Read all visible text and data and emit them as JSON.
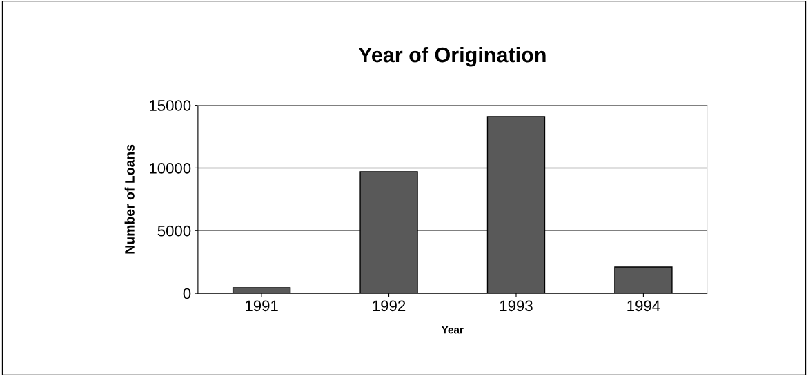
{
  "chart_data": {
    "type": "bar",
    "title": "Year of Origination",
    "xlabel": "Year",
    "ylabel": "Number of Loans",
    "categories": [
      "1991",
      "1992",
      "1993",
      "1994"
    ],
    "values": [
      450,
      9700,
      14100,
      2100
    ],
    "color": "#595959",
    "ylim": [
      0,
      15000
    ],
    "yticks": [
      0,
      5000,
      10000,
      15000
    ],
    "grid": "y"
  }
}
